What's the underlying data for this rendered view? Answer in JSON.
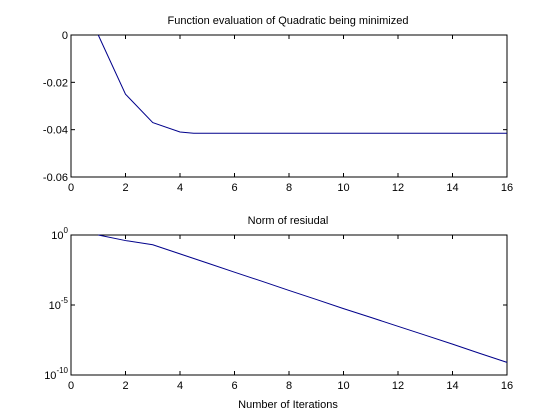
{
  "chart_data": [
    {
      "type": "line",
      "title": "Function evaluation of Quadratic being minimized",
      "xlabel": "",
      "ylabel": "",
      "xlim": [
        0,
        16
      ],
      "ylim": [
        -0.06,
        0
      ],
      "yscale": "linear",
      "grid": false,
      "xticks": [
        0,
        2,
        4,
        6,
        8,
        10,
        12,
        14,
        16
      ],
      "yticks": [
        0,
        -0.02,
        -0.04,
        -0.06
      ],
      "xtick_labels": [
        "0",
        "2",
        "4",
        "6",
        "8",
        "10",
        "12",
        "14",
        "16"
      ],
      "ytick_labels": [
        "0",
        "-0.02",
        "-0.04",
        "-0.06"
      ],
      "series": [
        {
          "color": "#00008b",
          "x": [
            1,
            2,
            3,
            4,
            4.5,
            5,
            6,
            7,
            8,
            9,
            10,
            11,
            12,
            13,
            14,
            15,
            16
          ],
          "y": [
            0,
            -0.025,
            -0.037,
            -0.041,
            -0.0415,
            -0.0415,
            -0.0415,
            -0.0415,
            -0.0415,
            -0.0415,
            -0.0415,
            -0.0415,
            -0.0415,
            -0.0415,
            -0.0415,
            -0.0415,
            -0.0415
          ]
        }
      ]
    },
    {
      "type": "line",
      "title": "Norm of resiudal",
      "xlabel": "Number of Iterations",
      "ylabel": "",
      "xlim": [
        0,
        16
      ],
      "ylim": [
        1e-10,
        1
      ],
      "yscale": "log",
      "grid": false,
      "xticks": [
        0,
        2,
        4,
        6,
        8,
        10,
        12,
        14,
        16
      ],
      "yticks": [
        1,
        1e-05,
        1e-10
      ],
      "xtick_labels": [
        "0",
        "2",
        "4",
        "6",
        "8",
        "10",
        "12",
        "14",
        "16"
      ],
      "ytick_labels": [
        {
          "base": "10",
          "exp": "0"
        },
        {
          "base": "10",
          "exp": "-5"
        },
        {
          "base": "10",
          "exp": "-10"
        }
      ],
      "series": [
        {
          "color": "#00008b",
          "x": [
            1,
            2,
            3,
            4,
            5,
            6,
            7,
            8,
            9,
            10,
            11,
            12,
            13,
            14,
            15,
            16
          ],
          "y": [
            1,
            0.4,
            0.2,
            0.045,
            0.01,
            0.0022,
            0.0005,
            0.00011,
            2.5e-05,
            5.5e-06,
            1.3e-06,
            3e-07,
            7e-08,
            1.6e-08,
            3.5e-09,
            8e-10
          ]
        }
      ]
    }
  ]
}
